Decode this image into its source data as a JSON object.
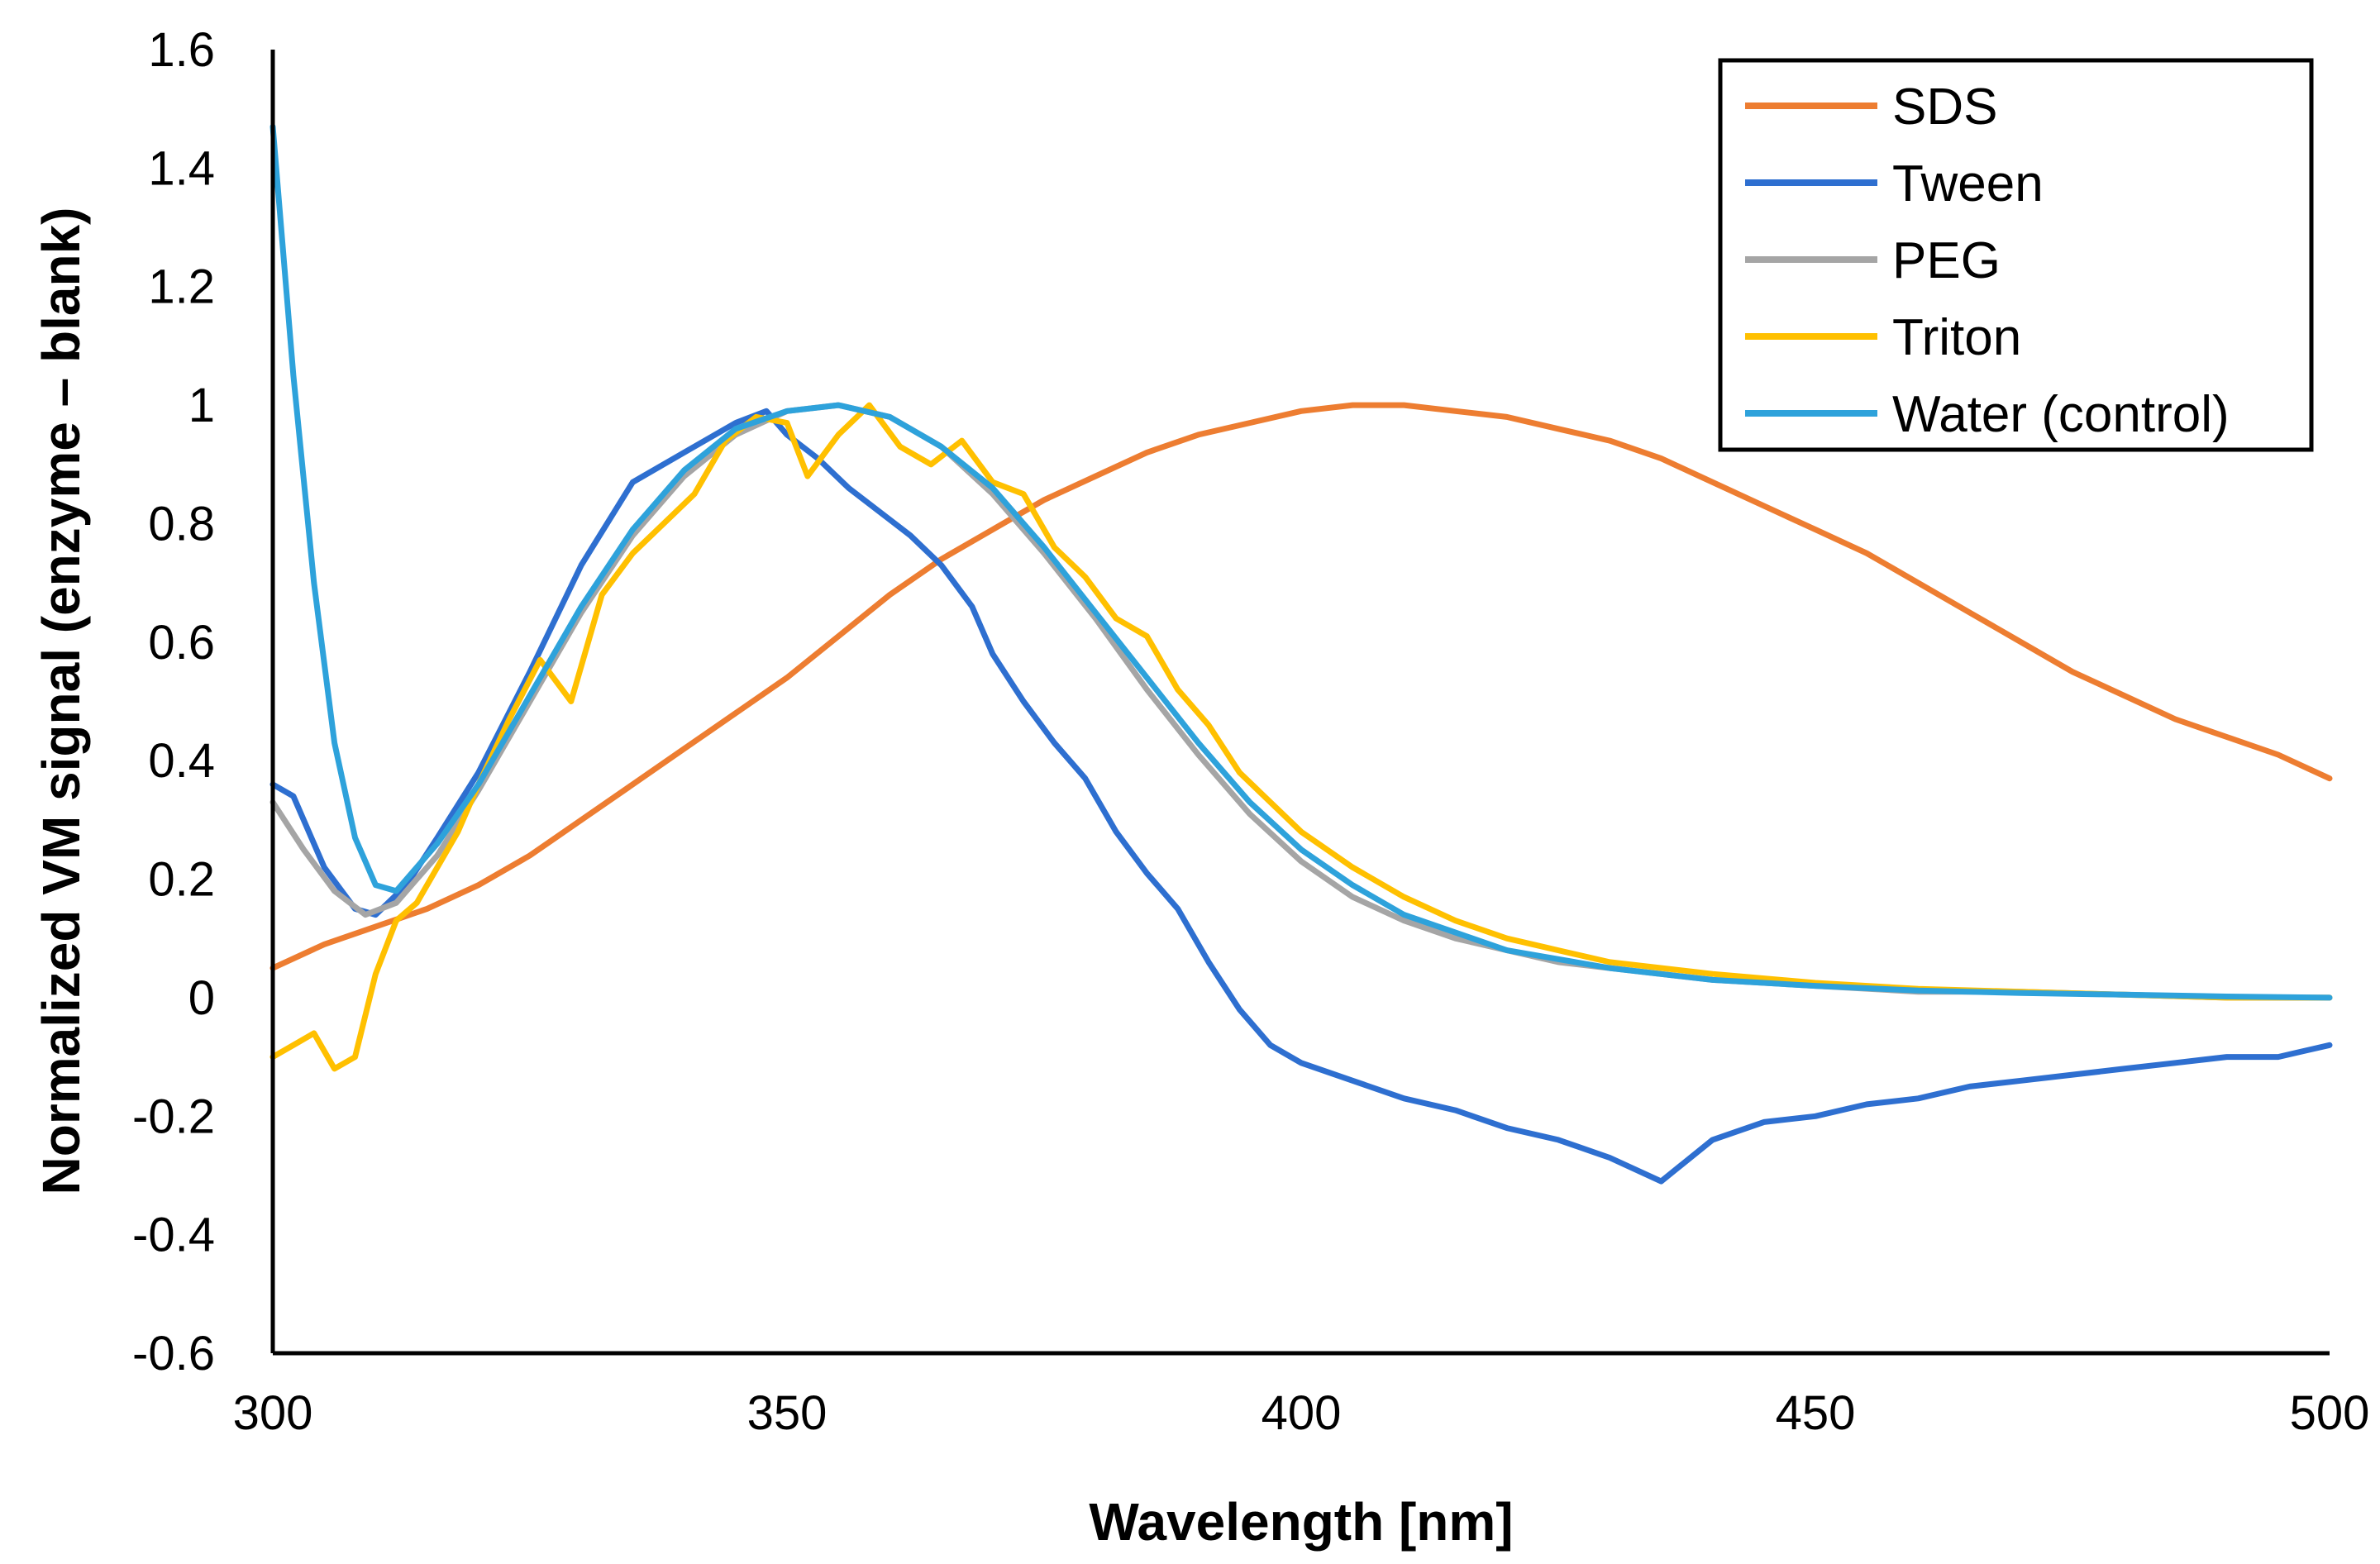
{
  "chart_data": {
    "type": "line",
    "title": "",
    "xlabel": "Wavelength  [nm]",
    "ylabel": "Normalized VM signal (enzyme – blank)",
    "xlim": [
      300,
      500
    ],
    "ylim": [
      -0.6,
      1.6
    ],
    "xticks": [
      300,
      350,
      400,
      450,
      500
    ],
    "yticks": [
      -0.6,
      -0.4,
      -0.2,
      0,
      0.2,
      0.4,
      0.6,
      0.8,
      1,
      1.2,
      1.4,
      1.6
    ],
    "xtick_labels": [
      "300",
      "350",
      "400",
      "450",
      "500"
    ],
    "ytick_labels": [
      "-0.6",
      "-0.4",
      "-0.2",
      "0",
      "0.2",
      "0.4",
      "0.6",
      "0.8",
      "1",
      "1.2",
      "1.4",
      "1.6"
    ],
    "grid": false,
    "legend": "top-right",
    "series": [
      {
        "name": "SDS",
        "color": "#ED7D31",
        "x": [
          300,
          305,
          310,
          315,
          320,
          325,
          330,
          335,
          340,
          345,
          350,
          355,
          360,
          365,
          370,
          375,
          380,
          385,
          390,
          395,
          400,
          405,
          410,
          415,
          420,
          425,
          430,
          435,
          440,
          445,
          450,
          455,
          460,
          465,
          470,
          475,
          480,
          485,
          490,
          495,
          500
        ],
        "y": [
          0.05,
          0.09,
          0.12,
          0.15,
          0.19,
          0.24,
          0.3,
          0.36,
          0.42,
          0.48,
          0.54,
          0.61,
          0.68,
          0.74,
          0.79,
          0.84,
          0.88,
          0.92,
          0.95,
          0.97,
          0.99,
          1.0,
          1.0,
          0.99,
          0.98,
          0.96,
          0.94,
          0.91,
          0.87,
          0.83,
          0.79,
          0.75,
          0.7,
          0.65,
          0.6,
          0.55,
          0.51,
          0.47,
          0.44,
          0.41,
          0.37
        ]
      },
      {
        "name": "Tween",
        "color": "#2E6FD0",
        "x": [
          300,
          302,
          305,
          308,
          310,
          313,
          316,
          320,
          325,
          330,
          335,
          340,
          345,
          348,
          350,
          353,
          356,
          359,
          362,
          365,
          368,
          370,
          373,
          376,
          379,
          382,
          385,
          388,
          391,
          394,
          397,
          400,
          405,
          410,
          415,
          420,
          425,
          430,
          435,
          440,
          445,
          450,
          455,
          460,
          465,
          470,
          475,
          480,
          485,
          490,
          495,
          500
        ],
        "y": [
          0.36,
          0.34,
          0.22,
          0.15,
          0.14,
          0.19,
          0.27,
          0.38,
          0.55,
          0.73,
          0.87,
          0.92,
          0.97,
          0.99,
          0.95,
          0.91,
          0.86,
          0.82,
          0.78,
          0.73,
          0.66,
          0.58,
          0.5,
          0.43,
          0.37,
          0.28,
          0.21,
          0.15,
          0.06,
          -0.02,
          -0.08,
          -0.11,
          -0.14,
          -0.17,
          -0.19,
          -0.22,
          -0.24,
          -0.27,
          -0.31,
          -0.24,
          -0.21,
          -0.2,
          -0.18,
          -0.17,
          -0.15,
          -0.14,
          -0.13,
          -0.12,
          -0.11,
          -0.1,
          -0.1,
          -0.08
        ]
      },
      {
        "name": "PEG",
        "color": "#A5A5A5",
        "x": [
          300,
          303,
          306,
          309,
          312,
          316,
          320,
          325,
          330,
          335,
          340,
          345,
          350,
          355,
          360,
          365,
          370,
          375,
          380,
          385,
          390,
          395,
          400,
          405,
          410,
          415,
          420,
          425,
          430,
          440,
          450,
          460,
          470,
          480,
          490,
          500
        ],
        "y": [
          0.33,
          0.25,
          0.18,
          0.14,
          0.16,
          0.24,
          0.35,
          0.5,
          0.65,
          0.78,
          0.88,
          0.95,
          0.99,
          1.0,
          0.98,
          0.93,
          0.85,
          0.75,
          0.64,
          0.52,
          0.41,
          0.31,
          0.23,
          0.17,
          0.13,
          0.1,
          0.08,
          0.06,
          0.05,
          0.03,
          0.02,
          0.01,
          0.01,
          0.005,
          0.0,
          0.0
        ]
      },
      {
        "name": "Triton",
        "color": "#FFC000",
        "x": [
          300,
          302,
          304,
          306,
          308,
          310,
          312,
          314,
          316,
          318,
          320,
          323,
          326,
          329,
          332,
          335,
          338,
          341,
          344,
          347,
          350,
          352,
          355,
          358,
          361,
          364,
          367,
          370,
          373,
          376,
          379,
          382,
          385,
          388,
          391,
          394,
          397,
          400,
          405,
          410,
          415,
          420,
          425,
          430,
          440,
          450,
          460,
          470,
          480,
          490,
          500
        ],
        "y": [
          -0.1,
          -0.08,
          -0.06,
          -0.12,
          -0.1,
          0.04,
          0.13,
          0.16,
          0.22,
          0.28,
          0.36,
          0.47,
          0.57,
          0.5,
          0.68,
          0.75,
          0.8,
          0.85,
          0.94,
          0.98,
          0.97,
          0.88,
          0.95,
          1.0,
          0.93,
          0.9,
          0.94,
          0.87,
          0.85,
          0.76,
          0.71,
          0.64,
          0.61,
          0.52,
          0.46,
          0.38,
          0.33,
          0.28,
          0.22,
          0.17,
          0.13,
          0.1,
          0.08,
          0.06,
          0.04,
          0.025,
          0.015,
          0.01,
          0.005,
          0.0,
          0.0
        ]
      },
      {
        "name": "Water (control)",
        "color": "#2EA2DB",
        "x": [
          300,
          302,
          304,
          306,
          308,
          310,
          312,
          316,
          320,
          325,
          330,
          335,
          340,
          345,
          350,
          355,
          360,
          365,
          370,
          375,
          380,
          385,
          390,
          395,
          400,
          405,
          410,
          415,
          420,
          425,
          430,
          440,
          450,
          460,
          470,
          480,
          490,
          500
        ],
        "y": [
          1.47,
          1.05,
          0.7,
          0.43,
          0.27,
          0.19,
          0.18,
          0.26,
          0.36,
          0.51,
          0.66,
          0.79,
          0.89,
          0.96,
          0.99,
          1.0,
          0.98,
          0.93,
          0.86,
          0.76,
          0.65,
          0.54,
          0.43,
          0.33,
          0.25,
          0.19,
          0.14,
          0.11,
          0.08,
          0.065,
          0.05,
          0.03,
          0.02,
          0.012,
          0.008,
          0.005,
          0.002,
          0.0
        ]
      }
    ]
  }
}
